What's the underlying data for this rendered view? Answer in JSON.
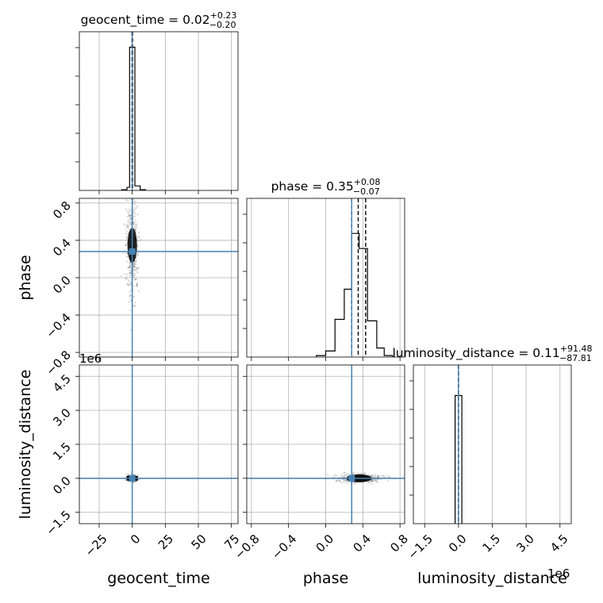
{
  "chart_data": {
    "type": "corner",
    "parameters": [
      "geocent_time",
      "phase",
      "luminosity_distance"
    ],
    "truths": {
      "geocent_time": 0.0,
      "phase": 0.28,
      "luminosity_distance": 0.0
    },
    "titles": [
      {
        "param": "geocent_time",
        "text": "geocent_time = 0.02",
        "plus": "+0.23",
        "minus": "−0.20"
      },
      {
        "param": "phase",
        "text": "phase = 0.35",
        "plus": "+0.08",
        "minus": "−0.07"
      },
      {
        "param": "luminosity_distance",
        "text": "luminosity_distance = 0.11",
        "plus": "+91.48",
        "minus": "−87.81"
      }
    ],
    "axis_labels": {
      "x": [
        "geocent_time",
        "phase",
        "luminosity_distance"
      ],
      "y": [
        "phase",
        "luminosity_distance"
      ]
    },
    "offset_text": "1e6",
    "ranges": {
      "geocent_time": [
        -40,
        80
      ],
      "phase": [
        -0.85,
        0.85
      ],
      "luminosity_distance": [
        -2.0,
        5.0
      ]
    },
    "ticks": {
      "geocent_time": {
        "values": [
          -25,
          0,
          25,
          50,
          75
        ],
        "labels": [
          "−25",
          "0",
          "25",
          "50",
          "75"
        ]
      },
      "phase": {
        "values": [
          -0.8,
          -0.4,
          0.0,
          0.4,
          0.8
        ],
        "labels": [
          "−0.8",
          "−0.4",
          "0.0",
          "0.4",
          "0.8"
        ]
      },
      "luminosity_distance": {
        "values": [
          -1.5,
          0.0,
          1.5,
          3.0,
          4.5
        ],
        "labels": [
          "−1.5",
          "0.0",
          "1.5",
          "3.0",
          "4.5"
        ]
      }
    },
    "quantiles": {
      "geocent_time": [
        -0.18,
        0.02,
        0.25
      ],
      "phase": [
        0.28,
        0.35,
        0.43
      ],
      "luminosity_distance": [
        -9e-05,
        0.0,
        9e-05
      ]
    },
    "histograms": {
      "geocent_time": {
        "edges": [
          -8,
          -4,
          -2,
          0,
          2,
          6,
          10
        ],
        "counts": [
          0.005,
          0.02,
          0.95,
          0.95,
          0.03,
          0.005
        ]
      },
      "phase": {
        "edges": [
          -0.1,
          0.0,
          0.1,
          0.2,
          0.28,
          0.36,
          0.45,
          0.55,
          0.63,
          0.72
        ],
        "counts": [
          0.01,
          0.04,
          0.25,
          0.45,
          0.82,
          0.72,
          0.24,
          0.06,
          0.01
        ]
      },
      "luminosity_distance": {
        "edges": [
          -0.15,
          0.0,
          0.15
        ],
        "counts": [
          0.85,
          0.85
        ]
      }
    },
    "scatter_center": {
      "phase_vs_geocent_time": [
        0.0,
        0.33
      ],
      "luminosity_distance_vs_phase": [
        0.36,
        0.0
      ]
    },
    "grid": true
  }
}
